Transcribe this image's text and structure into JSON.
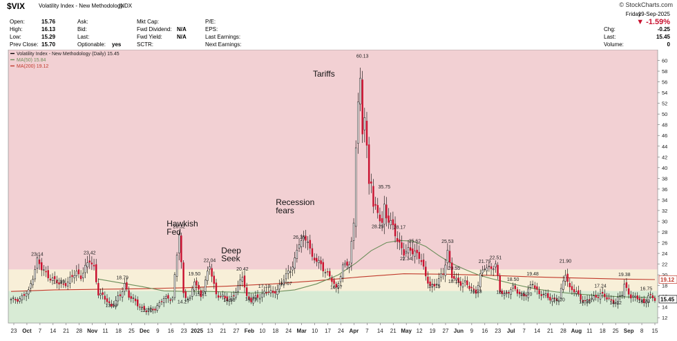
{
  "header": {
    "symbol": "$VIX",
    "name": "Volatility Index - New Methodology",
    "exchange": "INDX",
    "credit": "© StockCharts.com",
    "day": "Friday",
    "date": "19-Sep-2025",
    "change_pct": "▼ -1.59%",
    "quote_col1": [
      {
        "label": "Open:",
        "value": "15.76"
      },
      {
        "label": "High:",
        "value": "16.13"
      },
      {
        "label": "Low:",
        "value": "15.29"
      },
      {
        "label": "Prev Close:",
        "value": "15.70"
      }
    ],
    "quote_col2": [
      {
        "label": "Ask:",
        "value": ""
      },
      {
        "label": "Bid:",
        "value": ""
      },
      {
        "label": "Last:",
        "value": ""
      },
      {
        "label": "Optionable:",
        "value": "yes"
      }
    ],
    "quote_col3": [
      {
        "label": "Mkt Cap:",
        "value": ""
      },
      {
        "label": "Fwd Dividend:",
        "value": "N/A"
      },
      {
        "label": "Fwd Yield:",
        "value": "N/A"
      },
      {
        "label": "SCTR:",
        "value": ""
      }
    ],
    "quote_col4": [
      {
        "label": "P/E:",
        "value": ""
      },
      {
        "label": "EPS:",
        "value": ""
      },
      {
        "label": "Last Earnings:",
        "value": ""
      },
      {
        "label": "Next Earnings:",
        "value": ""
      }
    ],
    "quote_col5": [
      {
        "label": "Chg:",
        "value": "-0.25"
      },
      {
        "label": "Last:",
        "value": "15.45"
      },
      {
        "label": "Volume:",
        "value": "0"
      }
    ]
  },
  "chart_data": {
    "type": "candlestick",
    "legend": [
      {
        "label": "Volatility Index - New Methodology (Daily) 15.45",
        "color": "#000000"
      },
      {
        "label": "MA(50) 15.84",
        "color": "#6b8e5a"
      },
      {
        "label": "MA(200) 19.12",
        "color": "#c0392b"
      }
    ],
    "y_ticks": [
      12,
      14,
      16,
      18,
      20,
      22,
      24,
      26,
      28,
      30,
      32,
      34,
      36,
      38,
      40,
      42,
      44,
      46,
      48,
      50,
      52,
      54,
      56,
      58,
      60
    ],
    "ylim": [
      11,
      62
    ],
    "x_tick_labels": [
      "23",
      "Oct",
      "7",
      "14",
      "21",
      "28",
      "Nov",
      "11",
      "18",
      "25",
      "Dec",
      "9",
      "16",
      "23",
      "2025",
      "13",
      "21",
      "27",
      "Feb",
      "10",
      "18",
      "24",
      "Mar",
      "10",
      "17",
      "24",
      "Apr",
      "7",
      "14",
      "21",
      "May",
      "12",
      "19",
      "27",
      "Jun",
      "9",
      "16",
      "23",
      "Jul",
      "7",
      "14",
      "21",
      "28",
      "Aug",
      "11",
      "18",
      "25",
      "Sep",
      "8",
      "15"
    ],
    "bands": [
      {
        "from": 11,
        "to": 17,
        "color": "#d8ebd5"
      },
      {
        "from": 17,
        "to": 21,
        "color": "#f8efd8"
      },
      {
        "from": 21,
        "to": 62,
        "color": "#f2d0d3"
      }
    ],
    "annotations": [
      {
        "text": "Hawkish",
        "x_index": 77,
        "y": 29
      },
      {
        "text": "Fed",
        "x_index": 77,
        "y": 27.5
      },
      {
        "text": "Deep",
        "x_index": 102,
        "y": 24
      },
      {
        "text": "Seek",
        "x_index": 102,
        "y": 22.5
      },
      {
        "text": "Recession",
        "x_index": 127,
        "y": 33
      },
      {
        "text": "fears",
        "x_index": 127,
        "y": 31.5
      },
      {
        "text": "Tariffs",
        "x_index": 144,
        "y": 57
      }
    ],
    "price_labels": [
      {
        "text": "23.14",
        "i": 12,
        "v": 23.14
      },
      {
        "text": "17.99",
        "i": 22,
        "v": 17.99
      },
      {
        "text": "23.42",
        "i": 36,
        "v": 23.42
      },
      {
        "text": "18.79",
        "i": 51,
        "v": 18.79
      },
      {
        "text": "13.59",
        "i": 46,
        "v": 13.59
      },
      {
        "text": "12.70",
        "i": 62,
        "v": 12.7
      },
      {
        "text": "28.32",
        "i": 77,
        "v": 28.32
      },
      {
        "text": "14.27",
        "i": 79,
        "v": 14.27
      },
      {
        "text": "19.50",
        "i": 84,
        "v": 19.5
      },
      {
        "text": "15.71",
        "i": 87,
        "v": 15.71
      },
      {
        "text": "22.04",
        "i": 91,
        "v": 22.04
      },
      {
        "text": "14.58",
        "i": 100,
        "v": 14.58
      },
      {
        "text": "20.42",
        "i": 106,
        "v": 20.42
      },
      {
        "text": "14.79",
        "i": 110,
        "v": 14.79
      },
      {
        "text": "17.18",
        "i": 116,
        "v": 17.18
      },
      {
        "text": "17.67",
        "i": 126,
        "v": 17.67
      },
      {
        "text": "26.35",
        "i": 132,
        "v": 26.35
      },
      {
        "text": "16.97",
        "i": 149,
        "v": 16.97
      },
      {
        "text": "60.13",
        "i": 161,
        "v": 60.13
      },
      {
        "text": "35.75",
        "i": 171,
        "v": 35.75
      },
      {
        "text": "28.29",
        "i": 168,
        "v": 28.29
      },
      {
        "text": "28.17",
        "i": 178,
        "v": 28.17
      },
      {
        "text": "25.62",
        "i": 185,
        "v": 25.62
      },
      {
        "text": "22.34",
        "i": 181,
        "v": 22.34
      },
      {
        "text": "17.15",
        "i": 194,
        "v": 17.15
      },
      {
        "text": "25.53",
        "i": 200,
        "v": 25.53
      },
      {
        "text": "20.55",
        "i": 203,
        "v": 20.55
      },
      {
        "text": "18.11",
        "i": 203,
        "v": 18.11
      },
      {
        "text": "16.23",
        "i": 213,
        "v": 16.23
      },
      {
        "text": "21.79",
        "i": 217,
        "v": 21.79
      },
      {
        "text": "22.51",
        "i": 222,
        "v": 22.51
      },
      {
        "text": "16.11",
        "i": 225,
        "v": 16.11
      },
      {
        "text": "18.50",
        "i": 230,
        "v": 18.5
      },
      {
        "text": "19.48",
        "i": 239,
        "v": 19.48
      },
      {
        "text": "15.70",
        "i": 236,
        "v": 15.7
      },
      {
        "text": "21.90",
        "i": 254,
        "v": 21.9
      },
      {
        "text": "14.70",
        "i": 251,
        "v": 14.7
      },
      {
        "text": "14.30",
        "i": 263,
        "v": 14.3
      },
      {
        "text": "17.24",
        "i": 270,
        "v": 17.24
      },
      {
        "text": "14.12",
        "i": 277,
        "v": 14.12
      },
      {
        "text": "19.38",
        "i": 281,
        "v": 19.38
      },
      {
        "text": "16.75",
        "i": 291,
        "v": 16.75
      },
      {
        "text": "14.33",
        "i": 290,
        "v": 14.33
      }
    ],
    "last_value_labels": [
      {
        "text": "19.12",
        "value": 19.12,
        "color": "#c0392b"
      },
      {
        "text": "15.45",
        "value": 15.45,
        "color": "#000000"
      }
    ],
    "keypoints": [
      [
        0,
        15.2
      ],
      [
        4,
        15.6
      ],
      [
        8,
        16.8
      ],
      [
        12,
        22.8
      ],
      [
        14,
        21
      ],
      [
        18,
        19.5
      ],
      [
        22,
        18.2
      ],
      [
        26,
        18.6
      ],
      [
        30,
        20.5
      ],
      [
        32,
        19.8
      ],
      [
        36,
        22.6
      ],
      [
        38,
        21.5
      ],
      [
        40,
        16.5
      ],
      [
        44,
        15.2
      ],
      [
        46,
        14.2
      ],
      [
        50,
        16
      ],
      [
        52,
        18.5
      ],
      [
        54,
        16
      ],
      [
        58,
        14.5
      ],
      [
        62,
        13.2
      ],
      [
        66,
        13.8
      ],
      [
        70,
        15.5
      ],
      [
        74,
        15.8
      ],
      [
        77,
        27.5
      ],
      [
        79,
        16.5
      ],
      [
        82,
        15.5
      ],
      [
        84,
        18.8
      ],
      [
        87,
        16.2
      ],
      [
        91,
        21.5
      ],
      [
        94,
        16.5
      ],
      [
        98,
        15.5
      ],
      [
        100,
        15.3
      ],
      [
        104,
        17.5
      ],
      [
        106,
        19.8
      ],
      [
        108,
        16
      ],
      [
        110,
        15.2
      ],
      [
        114,
        16
      ],
      [
        116,
        16.9
      ],
      [
        120,
        16.5
      ],
      [
        124,
        18.5
      ],
      [
        128,
        21
      ],
      [
        130,
        23
      ],
      [
        132,
        25.8
      ],
      [
        136,
        27
      ],
      [
        138,
        23
      ],
      [
        142,
        22
      ],
      [
        146,
        19.5
      ],
      [
        149,
        17.5
      ],
      [
        152,
        21.5
      ],
      [
        155,
        22
      ],
      [
        157,
        30
      ],
      [
        158,
        45
      ],
      [
        159,
        52
      ],
      [
        160,
        55
      ],
      [
        161,
        46
      ],
      [
        162,
        50
      ],
      [
        163,
        44
      ],
      [
        164,
        37
      ],
      [
        165,
        38
      ],
      [
        166,
        33
      ],
      [
        168,
        31
      ],
      [
        170,
        30
      ],
      [
        171,
        33
      ],
      [
        172,
        31
      ],
      [
        174,
        29.5
      ],
      [
        176,
        27.5
      ],
      [
        178,
        26
      ],
      [
        180,
        24
      ],
      [
        183,
        24.5
      ],
      [
        185,
        24.6
      ],
      [
        188,
        22.5
      ],
      [
        190,
        19.5
      ],
      [
        192,
        18.3
      ],
      [
        194,
        17.8
      ],
      [
        196,
        19
      ],
      [
        198,
        20.5
      ],
      [
        200,
        24.5
      ],
      [
        202,
        19.5
      ],
      [
        205,
        18.7
      ],
      [
        208,
        18.5
      ],
      [
        210,
        17.5
      ],
      [
        213,
        17
      ],
      [
        215,
        19.8
      ],
      [
        217,
        21.2
      ],
      [
        220,
        21.5
      ],
      [
        222,
        21.8
      ],
      [
        224,
        16.8
      ],
      [
        226,
        16.5
      ],
      [
        230,
        17.5
      ],
      [
        233,
        16.5
      ],
      [
        236,
        16.2
      ],
      [
        239,
        18.5
      ],
      [
        242,
        16.5
      ],
      [
        246,
        15.8
      ],
      [
        251,
        15.2
      ],
      [
        254,
        20.5
      ],
      [
        256,
        17.5
      ],
      [
        259,
        16.5
      ],
      [
        263,
        15
      ],
      [
        266,
        15.5
      ],
      [
        270,
        16.5
      ],
      [
        273,
        15.5
      ],
      [
        277,
        15
      ],
      [
        280,
        16.3
      ],
      [
        281,
        18.2
      ],
      [
        284,
        16
      ],
      [
        286,
        15.6
      ],
      [
        288,
        15.5
      ],
      [
        290,
        14.9
      ],
      [
        292,
        16
      ],
      [
        294,
        15.6
      ],
      [
        295,
        15.45
      ]
    ],
    "ma50": [
      [
        40,
        19.2
      ],
      [
        50,
        18.5
      ],
      [
        60,
        17.8
      ],
      [
        70,
        17
      ],
      [
        80,
        16.9
      ],
      [
        90,
        16.9
      ],
      [
        100,
        16.8
      ],
      [
        110,
        16.6
      ],
      [
        120,
        16.8
      ],
      [
        130,
        17.2
      ],
      [
        140,
        18.3
      ],
      [
        150,
        20
      ],
      [
        158,
        22.2
      ],
      [
        165,
        24.5
      ],
      [
        172,
        26
      ],
      [
        178,
        26.4
      ],
      [
        184,
        26.3
      ],
      [
        190,
        25.3
      ],
      [
        196,
        23.6
      ],
      [
        202,
        22.1
      ],
      [
        208,
        21
      ],
      [
        214,
        20
      ],
      [
        220,
        19.3
      ],
      [
        226,
        18.7
      ],
      [
        232,
        18.1
      ],
      [
        240,
        17.4
      ],
      [
        250,
        16.8
      ],
      [
        260,
        16.4
      ],
      [
        270,
        16.1
      ],
      [
        280,
        15.9
      ],
      [
        290,
        15.8
      ],
      [
        295,
        15.84
      ]
    ],
    "ma200": [
      [
        0,
        16.9
      ],
      [
        20,
        17.2
      ],
      [
        40,
        17.3
      ],
      [
        60,
        17.4
      ],
      [
        80,
        17.6
      ],
      [
        100,
        17.9
      ],
      [
        120,
        18.3
      ],
      [
        140,
        18.9
      ],
      [
        160,
        19.6
      ],
      [
        180,
        20.2
      ],
      [
        200,
        20.1
      ],
      [
        220,
        19.9
      ],
      [
        240,
        19.6
      ],
      [
        260,
        19.4
      ],
      [
        280,
        19.2
      ],
      [
        295,
        19.12
      ]
    ],
    "n_bars": 296
  }
}
